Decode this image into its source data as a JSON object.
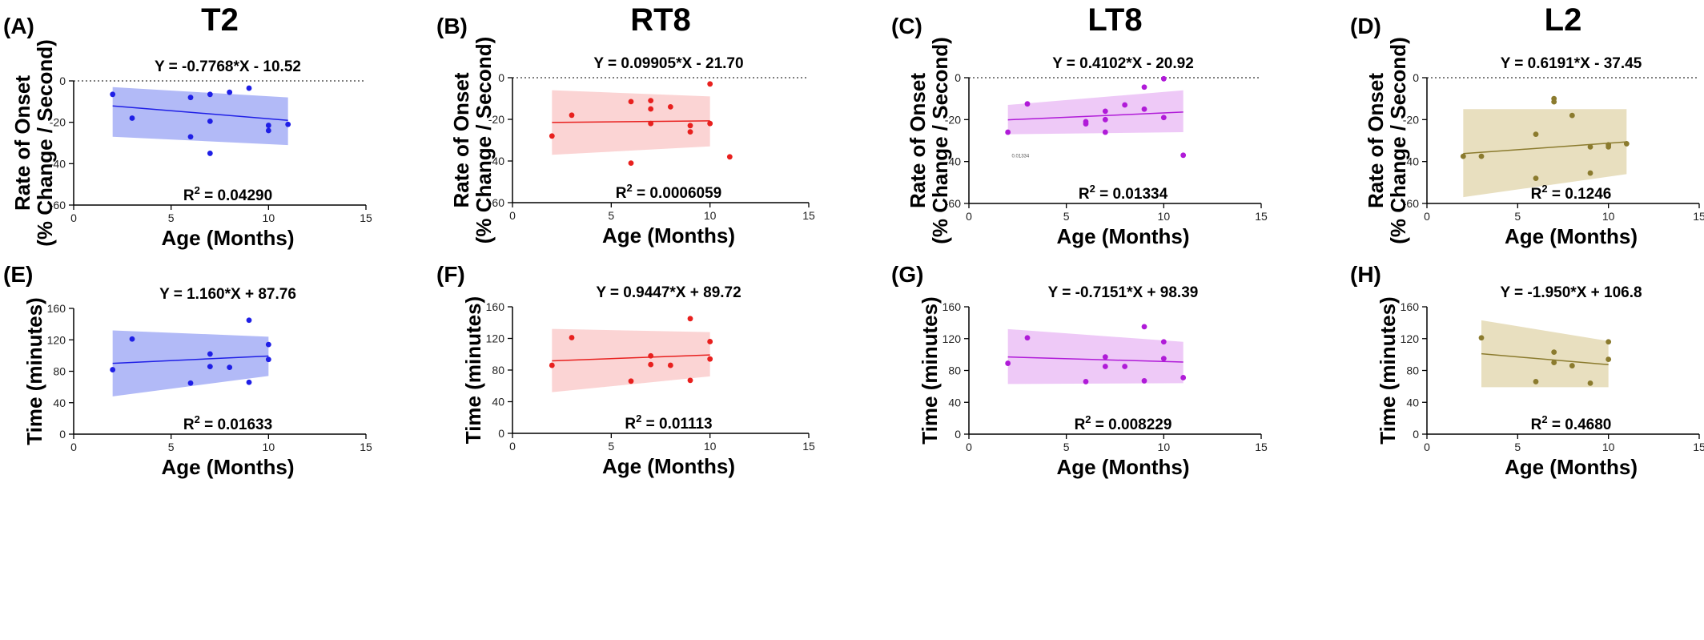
{
  "chart_data": [
    {
      "panel": "(A)",
      "title": "T2",
      "type": "scatter",
      "color": "#1f1fe6",
      "band_color": "#aab2f6",
      "equation": "Y = -0.7768*X - 10.52",
      "r2_value": "0.04290",
      "ylabel_lines": [
        "Rate of  Onset",
        "(% Change / Second)"
      ],
      "xlabel": "Age (Months)",
      "xlim": [
        0,
        15
      ],
      "xticks": [
        0,
        5,
        10,
        15
      ],
      "ylim": [
        -60,
        0
      ],
      "yticks": [
        0,
        -20,
        -40,
        -60
      ],
      "zero_line": true,
      "fit": {
        "slope": -0.7768,
        "intercept": -10.52,
        "x_range": [
          2,
          11
        ],
        "ci_upper": [
          -3,
          -8
        ],
        "ci_lower": [
          -27,
          -31
        ]
      },
      "points": [
        [
          2,
          -6.5
        ],
        [
          3,
          -18
        ],
        [
          6,
          -8
        ],
        [
          6,
          -27
        ],
        [
          7,
          -6.5
        ],
        [
          7,
          -19.5
        ],
        [
          7,
          -35
        ],
        [
          8,
          -5.5
        ],
        [
          9,
          -3.5
        ],
        [
          10,
          -21.5
        ],
        [
          10,
          -24
        ],
        [
          11,
          -21
        ]
      ]
    },
    {
      "panel": "(B)",
      "title": "RT8",
      "type": "scatter",
      "color": "#e8201e",
      "band_color": "#fbcfcf",
      "equation": "Y = 0.09905*X - 21.70",
      "r2_value": "0.0006059",
      "ylabel_lines": [
        "Rate of  Onset",
        "(% Change / Second)"
      ],
      "xlabel": "Age (Months)",
      "xlim": [
        0,
        15
      ],
      "xticks": [
        0,
        5,
        10,
        15
      ],
      "ylim": [
        -60,
        0
      ],
      "yticks": [
        0,
        -20,
        -40,
        -60
      ],
      "zero_line": true,
      "fit": {
        "slope": 0.09905,
        "intercept": -21.7,
        "x_range": [
          2,
          10
        ],
        "ci_upper": [
          -6,
          -9
        ],
        "ci_lower": [
          -37,
          -33
        ]
      },
      "points": [
        [
          2,
          -28
        ],
        [
          3,
          -18
        ],
        [
          6,
          -11.5
        ],
        [
          6,
          -41
        ],
        [
          7,
          -11
        ],
        [
          7,
          -15
        ],
        [
          7,
          -22
        ],
        [
          8,
          -14
        ],
        [
          9,
          -23
        ],
        [
          9,
          -26
        ],
        [
          10,
          -3
        ],
        [
          10,
          -22
        ],
        [
          11,
          -38
        ]
      ]
    },
    {
      "panel": "(C)",
      "title": "LT8",
      "type": "scatter",
      "color": "#b01bd8",
      "band_color": "#ecc3f6",
      "equation": "Y = 0.4102*X - 20.92",
      "r2_value": "0.01334",
      "ylabel_lines": [
        "Rate of  Onset",
        "(% Change / Second)"
      ],
      "xlabel": "Age (Months)",
      "xlim": [
        0,
        15
      ],
      "xticks": [
        0,
        5,
        10,
        15
      ],
      "ylim": [
        -60,
        0
      ],
      "yticks": [
        0,
        -20,
        -40,
        -60
      ],
      "zero_line": true,
      "small_note": "0.01334",
      "fit": {
        "slope": 0.4102,
        "intercept": -20.92,
        "x_range": [
          2,
          11
        ],
        "ci_upper": [
          -13,
          -6
        ],
        "ci_lower": [
          -27,
          -26
        ]
      },
      "points": [
        [
          2,
          -26
        ],
        [
          3,
          -12.5
        ],
        [
          6,
          -21
        ],
        [
          6,
          -22
        ],
        [
          7,
          -16
        ],
        [
          7,
          -20
        ],
        [
          7,
          -26
        ],
        [
          8,
          -13
        ],
        [
          9,
          -4.5
        ],
        [
          9,
          -15
        ],
        [
          10,
          -0.5
        ],
        [
          10,
          -19
        ],
        [
          11,
          -37
        ]
      ]
    },
    {
      "panel": "(D)",
      "title": "L2",
      "type": "scatter",
      "color": "#8b7b2e",
      "band_color": "#e5dcb8",
      "equation": "Y = 0.6191*X - 37.45",
      "r2_value": "0.1246",
      "ylabel_lines": [
        "Rate of  Onset",
        "(% Change / Second)"
      ],
      "xlabel": "Age (Months)",
      "xlim": [
        0,
        15
      ],
      "xticks": [
        0,
        5,
        10,
        15
      ],
      "ylim": [
        -60,
        0
      ],
      "yticks": [
        0,
        -20,
        -40,
        -60
      ],
      "zero_line": true,
      "fit": {
        "slope": 0.6191,
        "intercept": -37.45,
        "x_range": [
          2,
          11
        ],
        "ci_upper": [
          -15,
          -15
        ],
        "ci_lower": [
          -57,
          -46
        ]
      },
      "points": [
        [
          2,
          -37.5
        ],
        [
          3,
          -37.5
        ],
        [
          6,
          -27
        ],
        [
          6,
          -48
        ],
        [
          7,
          -10
        ],
        [
          7,
          -11.5
        ],
        [
          8,
          -18
        ],
        [
          9,
          -33
        ],
        [
          9,
          -45.5
        ],
        [
          10,
          -32
        ],
        [
          10,
          -33
        ],
        [
          11,
          -31.5
        ]
      ]
    },
    {
      "panel": "(E)",
      "title": "",
      "type": "scatter",
      "color": "#1f1fe6",
      "band_color": "#aab2f6",
      "equation": "Y = 1.160*X + 87.76",
      "r2_value": "0.01633",
      "ylabel_lines": [
        "Time (minutes)"
      ],
      "xlabel": "Age (Months)",
      "xlim": [
        0,
        15
      ],
      "xticks": [
        0,
        5,
        10,
        15
      ],
      "ylim": [
        0,
        160
      ],
      "yticks": [
        0,
        40,
        80,
        120,
        160
      ],
      "zero_line": false,
      "fit": {
        "slope": 1.16,
        "intercept": 87.76,
        "x_range": [
          2,
          10
        ],
        "ci_upper": [
          132,
          124
        ],
        "ci_lower": [
          48,
          74
        ]
      },
      "points": [
        [
          2,
          82
        ],
        [
          3,
          121
        ],
        [
          6,
          65
        ],
        [
          7,
          102
        ],
        [
          7,
          86
        ],
        [
          8,
          85
        ],
        [
          9,
          145
        ],
        [
          9,
          66
        ],
        [
          10,
          114
        ],
        [
          10,
          95
        ]
      ]
    },
    {
      "panel": "(F)",
      "title": "",
      "type": "scatter",
      "color": "#e8201e",
      "band_color": "#fbcfcf",
      "equation": "Y = 0.9447*X + 89.72",
      "r2_value": "0.01113",
      "ylabel_lines": [
        "Time (minutes)"
      ],
      "xlabel": "Age (Months)",
      "xlim": [
        0,
        15
      ],
      "xticks": [
        0,
        5,
        10,
        15
      ],
      "ylim": [
        0,
        160
      ],
      "yticks": [
        0,
        40,
        80,
        120,
        160
      ],
      "zero_line": false,
      "fit": {
        "slope": 0.9447,
        "intercept": 89.72,
        "x_range": [
          2,
          10
        ],
        "ci_upper": [
          132,
          128
        ],
        "ci_lower": [
          52,
          72
        ]
      },
      "points": [
        [
          2,
          86
        ],
        [
          3,
          121
        ],
        [
          6,
          66
        ],
        [
          7,
          98
        ],
        [
          7,
          87
        ],
        [
          8,
          86
        ],
        [
          9,
          145
        ],
        [
          9,
          67
        ],
        [
          10,
          116
        ],
        [
          10,
          94
        ]
      ]
    },
    {
      "panel": "(G)",
      "title": "",
      "type": "scatter",
      "color": "#b01bd8",
      "band_color": "#ecc3f6",
      "equation": "Y = -0.7151*X + 98.39",
      "r2_value": "0.008229",
      "ylabel_lines": [
        "Time (minutes)"
      ],
      "xlabel": "Age (Months)",
      "xlim": [
        0,
        15
      ],
      "xticks": [
        0,
        5,
        10,
        15
      ],
      "ylim": [
        0,
        160
      ],
      "yticks": [
        0,
        40,
        80,
        120,
        160
      ],
      "zero_line": false,
      "fit": {
        "slope": -0.7151,
        "intercept": 98.39,
        "x_range": [
          2,
          11
        ],
        "ci_upper": [
          132,
          116
        ],
        "ci_lower": [
          63,
          64
        ]
      },
      "points": [
        [
          2,
          89
        ],
        [
          3,
          121
        ],
        [
          6,
          66
        ],
        [
          7,
          97
        ],
        [
          7,
          85
        ],
        [
          8,
          85
        ],
        [
          9,
          135
        ],
        [
          9,
          67
        ],
        [
          10,
          116
        ],
        [
          10,
          95
        ],
        [
          11,
          71
        ]
      ]
    },
    {
      "panel": "(H)",
      "title": "",
      "type": "scatter",
      "color": "#8b7b2e",
      "band_color": "#e5dcb8",
      "equation": "Y = -1.950*X + 106.8",
      "r2_value": "0.4680",
      "ylabel_lines": [
        "Time (minutes)"
      ],
      "xlabel": "Age (Months)",
      "xlim": [
        0,
        15
      ],
      "xticks": [
        0,
        5,
        10,
        15
      ],
      "ylim": [
        0,
        160
      ],
      "yticks": [
        0,
        40,
        80,
        120,
        160
      ],
      "zero_line": false,
      "fit": {
        "slope": -1.95,
        "intercept": 106.8,
        "x_range": [
          3,
          10
        ],
        "ci_upper": [
          143,
          117
        ],
        "ci_lower": [
          59,
          59
        ]
      },
      "points": [
        [
          3,
          121
        ],
        [
          6,
          66
        ],
        [
          7,
          103
        ],
        [
          7,
          90
        ],
        [
          8,
          86
        ],
        [
          9,
          64
        ],
        [
          10,
          116
        ],
        [
          10,
          94
        ]
      ]
    }
  ]
}
